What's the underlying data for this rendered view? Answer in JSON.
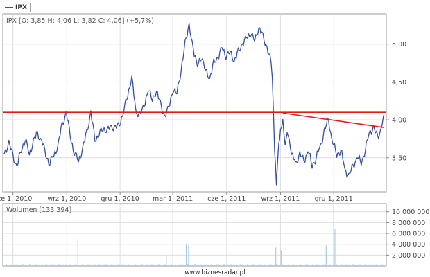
{
  "legend": {
    "ticker": "IPX"
  },
  "price_panel_label": "IPX [O: 3,85  H: 4,06  L: 3,82  C: 4,06] (+5,7%)",
  "volume_panel_label": "Wolumen [133 394]",
  "footer_text": "www.biznesradar.pl",
  "colors": {
    "series": "#35509b",
    "trendline": "#e31a1c",
    "volume": "#a9c9e6",
    "grid": "#dedede",
    "frame": "#999999"
  },
  "chart_data": [
    {
      "type": "line",
      "title": "IPX",
      "x_tick_labels": [
        "cze 1, 2010",
        "wrz 1, 2010",
        "gru 1, 2010",
        "mar 1, 2011",
        "cze 1, 2011",
        "wrz 1, 2011",
        "gru 1, 2011"
      ],
      "x_range": [
        "2010-05-17",
        "2012-02-24"
      ],
      "ylim": [
        3.05,
        5.4
      ],
      "yticks": [
        3.5,
        4.0,
        4.5,
        5.0
      ],
      "y_tick_labels": [
        "3,50",
        "4,00",
        "4,50",
        "5,00"
      ],
      "grid": true,
      "series": [
        {
          "name": "IPX",
          "points": [
            [
              "2010-05-17",
              3.55
            ],
            [
              "2010-05-25",
              3.7
            ],
            [
              "2010-06-01",
              3.52
            ],
            [
              "2010-06-08",
              3.38
            ],
            [
              "2010-06-15",
              3.6
            ],
            [
              "2010-06-22",
              3.75
            ],
            [
              "2010-06-29",
              3.55
            ],
            [
              "2010-07-06",
              3.72
            ],
            [
              "2010-07-13",
              3.82
            ],
            [
              "2010-07-20",
              3.72
            ],
            [
              "2010-07-27",
              3.55
            ],
            [
              "2010-08-03",
              3.42
            ],
            [
              "2010-08-10",
              3.55
            ],
            [
              "2010-08-17",
              3.65
            ],
            [
              "2010-08-24",
              3.95
            ],
            [
              "2010-08-31",
              4.08
            ],
            [
              "2010-09-07",
              3.8
            ],
            [
              "2010-09-14",
              3.55
            ],
            [
              "2010-09-21",
              3.48
            ],
            [
              "2010-09-28",
              3.6
            ],
            [
              "2010-10-05",
              3.85
            ],
            [
              "2010-10-12",
              4.08
            ],
            [
              "2010-10-19",
              3.75
            ],
            [
              "2010-10-26",
              3.8
            ],
            [
              "2010-11-02",
              3.9
            ],
            [
              "2010-11-09",
              3.85
            ],
            [
              "2010-11-16",
              3.92
            ],
            [
              "2010-11-23",
              3.88
            ],
            [
              "2010-11-30",
              3.95
            ],
            [
              "2010-12-07",
              4.1
            ],
            [
              "2010-12-14",
              4.35
            ],
            [
              "2010-12-21",
              4.55
            ],
            [
              "2010-12-28",
              4.12
            ],
            [
              "2011-01-04",
              4.05
            ],
            [
              "2011-01-11",
              4.2
            ],
            [
              "2011-01-18",
              4.38
            ],
            [
              "2011-01-25",
              4.3
            ],
            [
              "2011-02-01",
              4.35
            ],
            [
              "2011-02-08",
              4.25
            ],
            [
              "2011-02-15",
              4.0
            ],
            [
              "2011-02-22",
              4.2
            ],
            [
              "2011-03-01",
              4.35
            ],
            [
              "2011-03-08",
              4.4
            ],
            [
              "2011-03-15",
              4.6
            ],
            [
              "2011-03-22",
              5.05
            ],
            [
              "2011-03-29",
              5.22
            ],
            [
              "2011-04-05",
              4.95
            ],
            [
              "2011-04-12",
              4.7
            ],
            [
              "2011-04-19",
              4.85
            ],
            [
              "2011-04-26",
              4.65
            ],
            [
              "2011-05-03",
              4.55
            ],
            [
              "2011-05-10",
              4.75
            ],
            [
              "2011-05-17",
              4.82
            ],
            [
              "2011-05-24",
              4.95
            ],
            [
              "2011-05-31",
              4.85
            ],
            [
              "2011-06-07",
              4.9
            ],
            [
              "2011-06-14",
              4.78
            ],
            [
              "2011-06-21",
              4.9
            ],
            [
              "2011-06-28",
              5.0
            ],
            [
              "2011-07-05",
              5.08
            ],
            [
              "2011-07-12",
              5.15
            ],
            [
              "2011-07-19",
              5.05
            ],
            [
              "2011-07-26",
              5.22
            ],
            [
              "2011-08-02",
              5.1
            ],
            [
              "2011-08-09",
              4.95
            ],
            [
              "2011-08-16",
              4.75
            ],
            [
              "2011-08-18",
              4.6
            ],
            [
              "2011-08-22",
              3.6
            ],
            [
              "2011-08-25",
              3.15
            ],
            [
              "2011-08-29",
              3.65
            ],
            [
              "2011-09-01",
              3.85
            ],
            [
              "2011-09-05",
              4.0
            ],
            [
              "2011-09-09",
              3.7
            ],
            [
              "2011-09-14",
              3.82
            ],
            [
              "2011-09-20",
              3.55
            ],
            [
              "2011-09-27",
              3.42
            ],
            [
              "2011-10-04",
              3.55
            ],
            [
              "2011-10-11",
              3.45
            ],
            [
              "2011-10-18",
              3.6
            ],
            [
              "2011-10-25",
              3.4
            ],
            [
              "2011-11-01",
              3.5
            ],
            [
              "2011-11-08",
              3.65
            ],
            [
              "2011-11-15",
              3.85
            ],
            [
              "2011-11-22",
              4.0
            ],
            [
              "2011-11-29",
              3.7
            ],
            [
              "2011-12-06",
              3.55
            ],
            [
              "2011-12-13",
              3.6
            ],
            [
              "2011-12-20",
              3.35
            ],
            [
              "2011-12-27",
              3.25
            ],
            [
              "2012-01-03",
              3.4
            ],
            [
              "2012-01-10",
              3.5
            ],
            [
              "2012-01-17",
              3.45
            ],
            [
              "2012-01-24",
              3.6
            ],
            [
              "2012-01-31",
              3.85
            ],
            [
              "2012-02-07",
              3.88
            ],
            [
              "2012-02-14",
              3.78
            ],
            [
              "2012-02-21",
              3.9
            ],
            [
              "2012-02-24",
              4.06
            ]
          ]
        }
      ],
      "annotations": {
        "horizontal_line": {
          "y": 4.1
        },
        "trendline": {
          "from": [
            "2011-09-05",
            4.09
          ],
          "to": [
            "2012-02-24",
            3.9
          ]
        }
      }
    },
    {
      "type": "bar",
      "title": "Wolumen",
      "ylim": [
        0,
        11500000
      ],
      "yticks": [
        2000000,
        4000000,
        6000000,
        8000000,
        10000000
      ],
      "y_tick_labels": [
        "2 000 000",
        "4 000 000",
        "6 000 000",
        "8 000 000",
        "10 000 000"
      ],
      "grid": true,
      "spikes": [
        [
          "2010-09-20",
          5000000
        ],
        [
          "2011-02-18",
          2000000
        ],
        [
          "2011-03-24",
          4100000
        ],
        [
          "2011-03-28",
          3800000
        ],
        [
          "2011-08-24",
          3400000
        ],
        [
          "2011-09-02",
          2900000
        ],
        [
          "2011-11-18",
          3800000
        ],
        [
          "2011-12-01",
          11300000
        ],
        [
          "2011-12-03",
          6800000
        ]
      ],
      "baseline_volume": 400000
    }
  ]
}
